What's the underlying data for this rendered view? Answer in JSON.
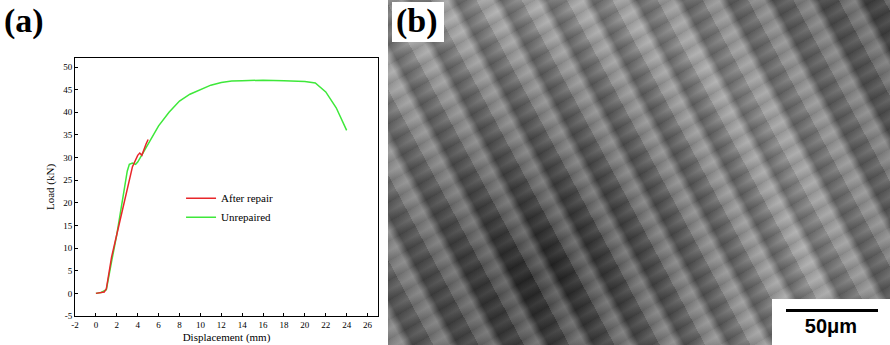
{
  "chart_data": {
    "type": "line",
    "x_label": "Displacement (mm)",
    "y_label": "Load (kN)",
    "xlim": [
      -2,
      27
    ],
    "ylim": [
      -5,
      52
    ],
    "xticks": [
      -2,
      0,
      2,
      4,
      6,
      8,
      10,
      12,
      14,
      16,
      18,
      20,
      22,
      24,
      26
    ],
    "yticks": [
      -5,
      0,
      5,
      10,
      15,
      20,
      25,
      30,
      35,
      40,
      45,
      50
    ],
    "grid": false,
    "legend": "right",
    "series": [
      {
        "name": "After repair",
        "color": "#e8262a",
        "x": [
          0,
          0.8,
          1.0,
          1.5,
          2.0,
          2.5,
          3.0,
          3.5,
          4.0,
          4.2,
          4.4,
          4.6,
          4.8,
          5.0
        ],
        "values": [
          0,
          0.3,
          1,
          8,
          13,
          18,
          23,
          28,
          30.5,
          31,
          30.5,
          32,
          33,
          34
        ]
      },
      {
        "name": "Unrepaired",
        "color": "#3ee83a",
        "x": [
          0,
          0.5,
          1.0,
          1.2,
          1.5,
          2.0,
          2.5,
          3.0,
          3.2,
          3.5,
          3.8,
          4.0,
          4.5,
          5,
          6,
          7,
          8,
          9,
          10,
          11,
          12,
          13,
          14,
          16,
          18,
          20,
          21,
          22,
          23,
          24
        ],
        "values": [
          0,
          0.2,
          0.8,
          3,
          7,
          13,
          20,
          27,
          28.5,
          28.8,
          28.5,
          29,
          31,
          33,
          37,
          40,
          42.5,
          44,
          45,
          46,
          46.6,
          46.9,
          47,
          47.1,
          47,
          46.8,
          46.5,
          44.5,
          41,
          36
        ]
      }
    ]
  },
  "figure": {
    "panel_labels": [
      "(a)",
      "(b)"
    ],
    "image": {
      "scale_bar": "50μm"
    }
  }
}
